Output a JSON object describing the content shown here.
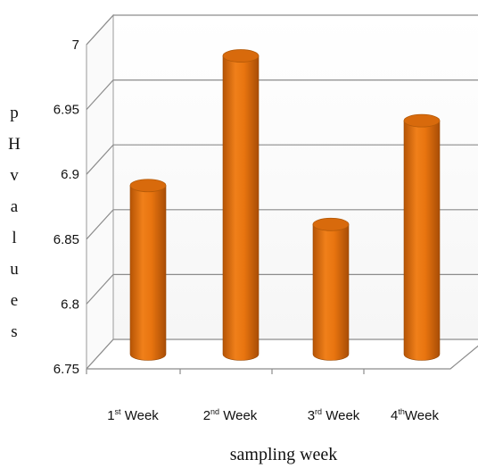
{
  "chart_data": {
    "type": "bar",
    "categories": [
      "1st Week",
      "2nd Week",
      "3rd Week",
      "4thWeek"
    ],
    "category_parts": [
      {
        "num": "1",
        "sup": "st",
        "rest": " Week"
      },
      {
        "num": "2",
        "sup": "nd",
        "rest": " Week"
      },
      {
        "num": "3",
        "sup": "rd",
        "rest": " Week"
      },
      {
        "num": "4",
        "sup": "th",
        "rest": "Week"
      }
    ],
    "values": [
      6.88,
      6.98,
      6.85,
      6.93
    ],
    "ylim": [
      6.75,
      7
    ],
    "yticks": [
      "6.75",
      "6.8",
      "6.85",
      "6.9",
      "6.95",
      "7"
    ],
    "xlabel": "sampling week",
    "ylabel": "pHvalues",
    "grid": true,
    "bar_color": "#e8740f",
    "bar_dark": "#a84d06",
    "bar_top": "#d86a0c"
  }
}
